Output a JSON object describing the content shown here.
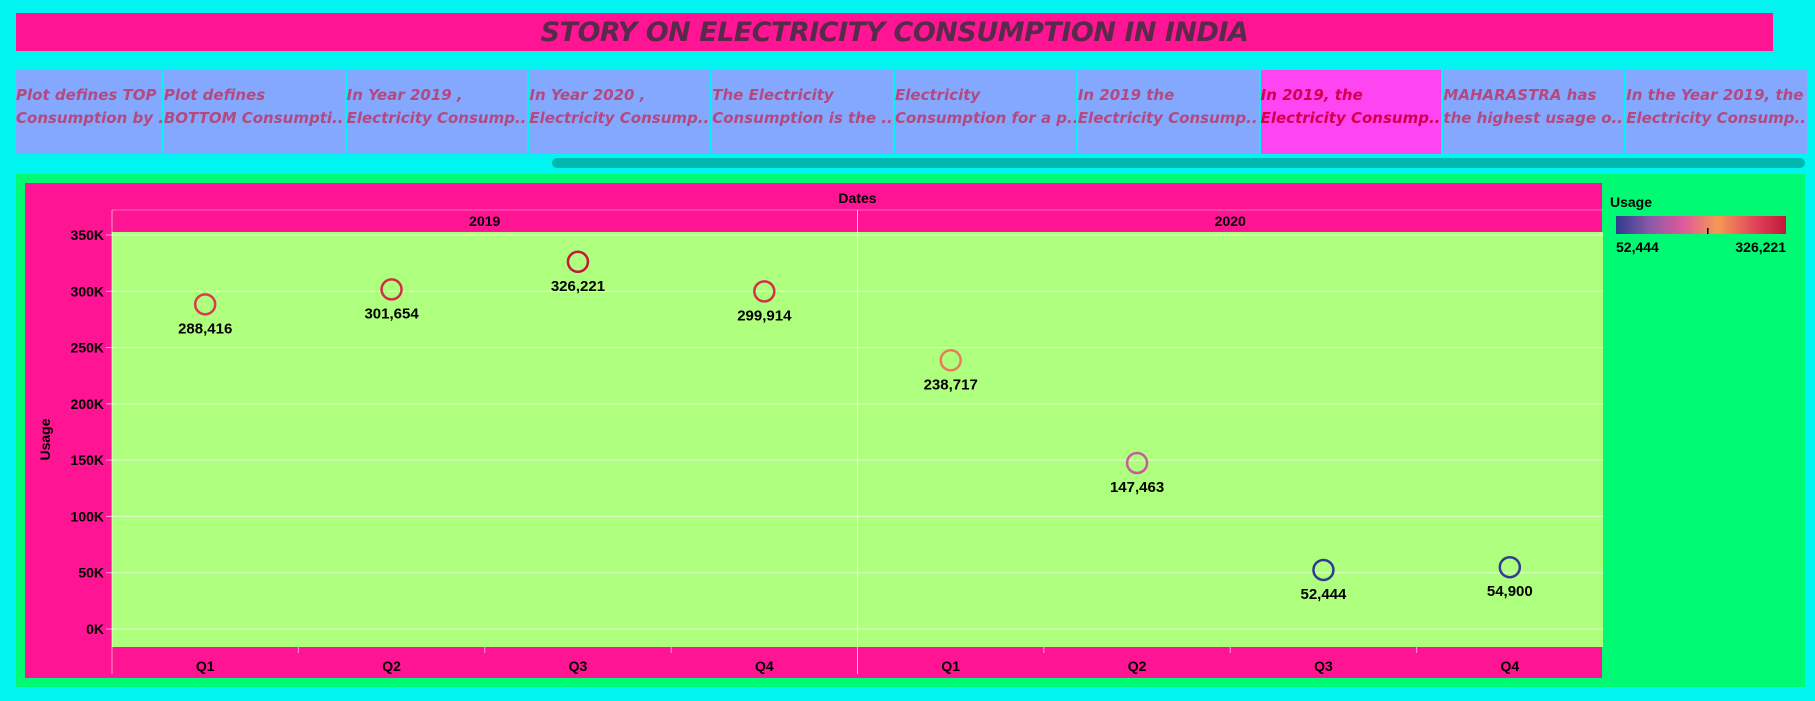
{
  "title": "STORY ON ELECTRICITY CONSUMPTION IN INDIA",
  "tabs": [
    {
      "line1": "Plot defines TOP",
      "line2": "Consumption by .."
    },
    {
      "line1": "Plot defines",
      "line2": "BOTTOM Consumpti.."
    },
    {
      "line1": "In Year 2019 ,",
      "line2": "Electricity Consump.."
    },
    {
      "line1": "In Year 2020 ,",
      "line2": "Electricity Consump.."
    },
    {
      "line1": "The Electricity",
      "line2": "Consumption is the .."
    },
    {
      "line1": "Electricity",
      "line2": "Consumption for a p.."
    },
    {
      "line1": "In 2019 the",
      "line2": "Electricity Consump.."
    },
    {
      "line1": "In 2019, the",
      "line2": "Electricity Consump..",
      "active": true
    },
    {
      "line1": "MAHARASTRA has",
      "line2": "the highest usage o.."
    },
    {
      "line1": "In the Year 2019, the",
      "line2": "Electricity Consump.."
    }
  ],
  "colors": {
    "title_bg": "#ff1493",
    "page_bg": "#00f5f0",
    "panel_bg": "#00fa74",
    "plot_bg": "#aeff7e",
    "header_bg": "#ff1493",
    "tab_bg": "#85a8ff",
    "tab_active_bg": "#ff44f2"
  },
  "chart_data": {
    "type": "scatter",
    "title": "",
    "header": "Dates",
    "ylabel": "Usage",
    "years": [
      "2019",
      "2020"
    ],
    "categories": [
      "Q1",
      "Q2",
      "Q3",
      "Q4"
    ],
    "ylim": [
      0,
      350000
    ],
    "yticks": [
      0,
      50000,
      100000,
      150000,
      200000,
      250000,
      300000,
      350000
    ],
    "ytick_labels": [
      "0K",
      "50K",
      "100K",
      "150K",
      "200K",
      "250K",
      "300K",
      "350K"
    ],
    "grid": true,
    "points": [
      {
        "year": "2019",
        "quarter": "Q1",
        "value": 288416,
        "label": "288,416"
      },
      {
        "year": "2019",
        "quarter": "Q2",
        "value": 301654,
        "label": "301,654"
      },
      {
        "year": "2019",
        "quarter": "Q3",
        "value": 326221,
        "label": "326,221"
      },
      {
        "year": "2019",
        "quarter": "Q4",
        "value": 299914,
        "label": "299,914"
      },
      {
        "year": "2020",
        "quarter": "Q1",
        "value": 238717,
        "label": "238,717"
      },
      {
        "year": "2020",
        "quarter": "Q2",
        "value": 147463,
        "label": "147,463"
      },
      {
        "year": "2020",
        "quarter": "Q3",
        "value": 52444,
        "label": "52,444"
      },
      {
        "year": "2020",
        "quarter": "Q4",
        "value": 54900,
        "label": "54,900"
      }
    ],
    "legend": {
      "title": "Usage",
      "min_label": "52,444",
      "max_label": "326,221",
      "min": 52444,
      "max": 326221,
      "placement": "right",
      "gradient": [
        "#2e3b8f",
        "#8a5aa8",
        "#e05a9a",
        "#f49a55",
        "#e24a5a",
        "#c4173a"
      ]
    }
  }
}
